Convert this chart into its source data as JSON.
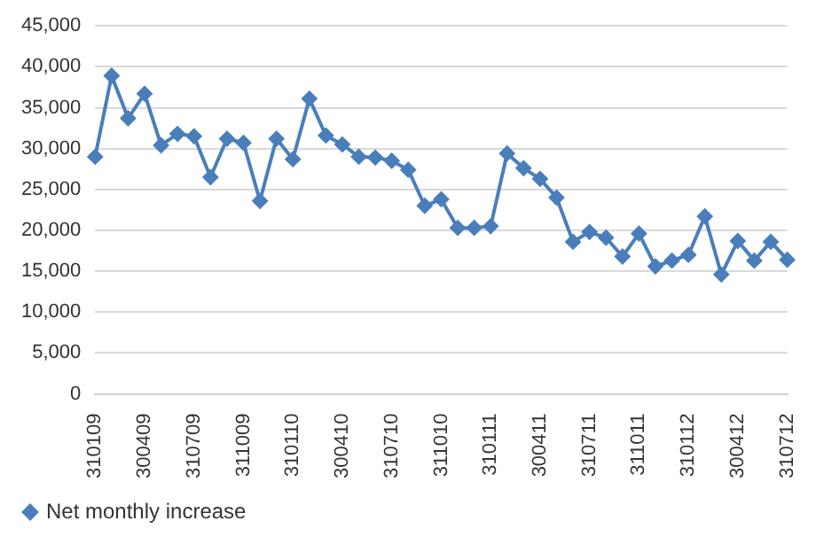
{
  "chart_data": {
    "type": "line",
    "categories": [
      "310109",
      null,
      null,
      "300409",
      null,
      null,
      "310709",
      null,
      null,
      "311009",
      null,
      null,
      "310110",
      null,
      null,
      "300410",
      null,
      null,
      "310710",
      null,
      null,
      "311010",
      null,
      null,
      "310111",
      null,
      null,
      "300411",
      null,
      null,
      "310711",
      null,
      null,
      "311011",
      null,
      null,
      "310112",
      null,
      null,
      "300412",
      null,
      null,
      "310712"
    ],
    "series": [
      {
        "name": "Net monthly increase",
        "color": "#4a7ebb",
        "values": [
          29000,
          38900,
          33700,
          36700,
          30400,
          31800,
          31500,
          26500,
          31200,
          30700,
          23600,
          31200,
          28700,
          36100,
          31600,
          30500,
          29000,
          28900,
          28500,
          27400,
          23000,
          23800,
          20300,
          20300,
          20500,
          29400,
          27600,
          26300,
          24000,
          18600,
          19800,
          19100,
          16800,
          19600,
          15600,
          16300,
          17000,
          21700,
          14600,
          18700,
          16300,
          18600,
          16400
        ]
      }
    ],
    "ylim": [
      0,
      45000
    ],
    "yticks": [
      0,
      {
        "value": 5000,
        "label": "5,000"
      },
      {
        "value": 10000,
        "label": "10,000"
      },
      {
        "value": 15000,
        "label": "15,000"
      },
      {
        "value": 20000,
        "label": "20,000"
      },
      {
        "value": 25000,
        "label": "25,000"
      },
      {
        "value": 30000,
        "label": "30,000"
      },
      {
        "value": 35000,
        "label": "35,000"
      },
      {
        "value": 40000,
        "label": "40,000"
      },
      {
        "value": 45000,
        "label": "45,000"
      }
    ],
    "grid": "y",
    "legend": "bottom left",
    "marker": "diamond",
    "line_style": "solid"
  }
}
